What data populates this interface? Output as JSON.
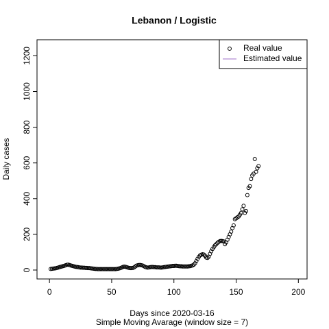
{
  "chart_data": {
    "type": "scatter",
    "title": "Lebanon / Logistic",
    "x_label": "Days since 2020-03-16",
    "subtitle": "Simple Moving Avarage (window size = 7)",
    "y_label": "Daily cases",
    "xlim": [
      -10,
      207
    ],
    "xticks": [
      0,
      50,
      100,
      150,
      200
    ],
    "ylim": [
      -50,
      1290
    ],
    "yticks": [
      0,
      200,
      400,
      600,
      800,
      1000,
      1200
    ],
    "legend_position": "top-right",
    "legend": [
      {
        "label": "Real value",
        "marker": "circle",
        "color": "#000000"
      },
      {
        "label": "Estimated value",
        "marker": "line",
        "color": "#9f6fc8"
      }
    ],
    "series": [
      {
        "name": "Real value",
        "color": "#000000",
        "x": [
          1,
          2,
          3,
          4,
          5,
          6,
          7,
          8,
          9,
          10,
          11,
          12,
          13,
          14,
          15,
          16,
          17,
          18,
          19,
          20,
          21,
          22,
          23,
          24,
          25,
          26,
          27,
          28,
          29,
          30,
          31,
          32,
          33,
          34,
          35,
          36,
          37,
          38,
          39,
          40,
          41,
          42,
          43,
          44,
          45,
          46,
          47,
          48,
          49,
          50,
          51,
          52,
          53,
          54,
          55,
          56,
          57,
          58,
          59,
          60,
          61,
          62,
          63,
          64,
          65,
          66,
          67,
          68,
          69,
          70,
          71,
          72,
          73,
          74,
          75,
          76,
          77,
          78,
          79,
          80,
          81,
          82,
          83,
          84,
          85,
          86,
          87,
          88,
          89,
          90,
          91,
          92,
          93,
          94,
          95,
          96,
          97,
          98,
          99,
          100,
          101,
          102,
          103,
          104,
          105,
          106,
          107,
          108,
          109,
          110,
          111,
          112,
          113,
          114,
          115,
          116,
          117,
          118,
          119,
          120,
          121,
          122,
          123,
          124,
          125,
          126,
          127,
          128,
          129,
          130,
          131,
          132,
          133,
          134,
          135,
          136,
          137,
          138,
          139,
          140,
          141,
          142,
          143,
          144,
          145,
          146,
          147,
          148,
          149,
          150,
          151,
          152,
          153,
          154,
          155,
          156,
          157,
          158,
          159,
          160,
          161,
          162,
          163,
          164,
          165,
          166,
          167,
          168
        ],
        "values": [
          6,
          7,
          8,
          9,
          10,
          12,
          14,
          16,
          18,
          20,
          22,
          24,
          27,
          29,
          30,
          28,
          26,
          24,
          22,
          20,
          18,
          17,
          16,
          15,
          14,
          14,
          13,
          13,
          12,
          12,
          11,
          11,
          10,
          9,
          8,
          7,
          6,
          6,
          5,
          5,
          5,
          5,
          5,
          5,
          5,
          5,
          5,
          5,
          5,
          5,
          5,
          5,
          5,
          6,
          7,
          9,
          11,
          14,
          17,
          19,
          18,
          16,
          14,
          12,
          11,
          11,
          12,
          15,
          20,
          25,
          27,
          28,
          28,
          27,
          25,
          21,
          17,
          15,
          14,
          15,
          16,
          17,
          17,
          16,
          16,
          15,
          15,
          15,
          14,
          14,
          15,
          16,
          17,
          18,
          19,
          20,
          21,
          22,
          23,
          23,
          24,
          24,
          23,
          22,
          21,
          21,
          20,
          20,
          20,
          20,
          20,
          21,
          22,
          24,
          26,
          30,
          38,
          50,
          63,
          74,
          82,
          86,
          88,
          87,
          80,
          70,
          68,
          75,
          90,
          105,
          118,
          128,
          138,
          145,
          152,
          158,
          162,
          163,
          162,
          160,
          145,
          155,
          170,
          185,
          200,
          215,
          235,
          250,
          285,
          290,
          295,
          300,
          310,
          320,
          340,
          360,
          320,
          330,
          420,
          460,
          470,
          510,
          530,
          540,
          622,
          550,
          570,
          582
        ]
      }
    ]
  }
}
